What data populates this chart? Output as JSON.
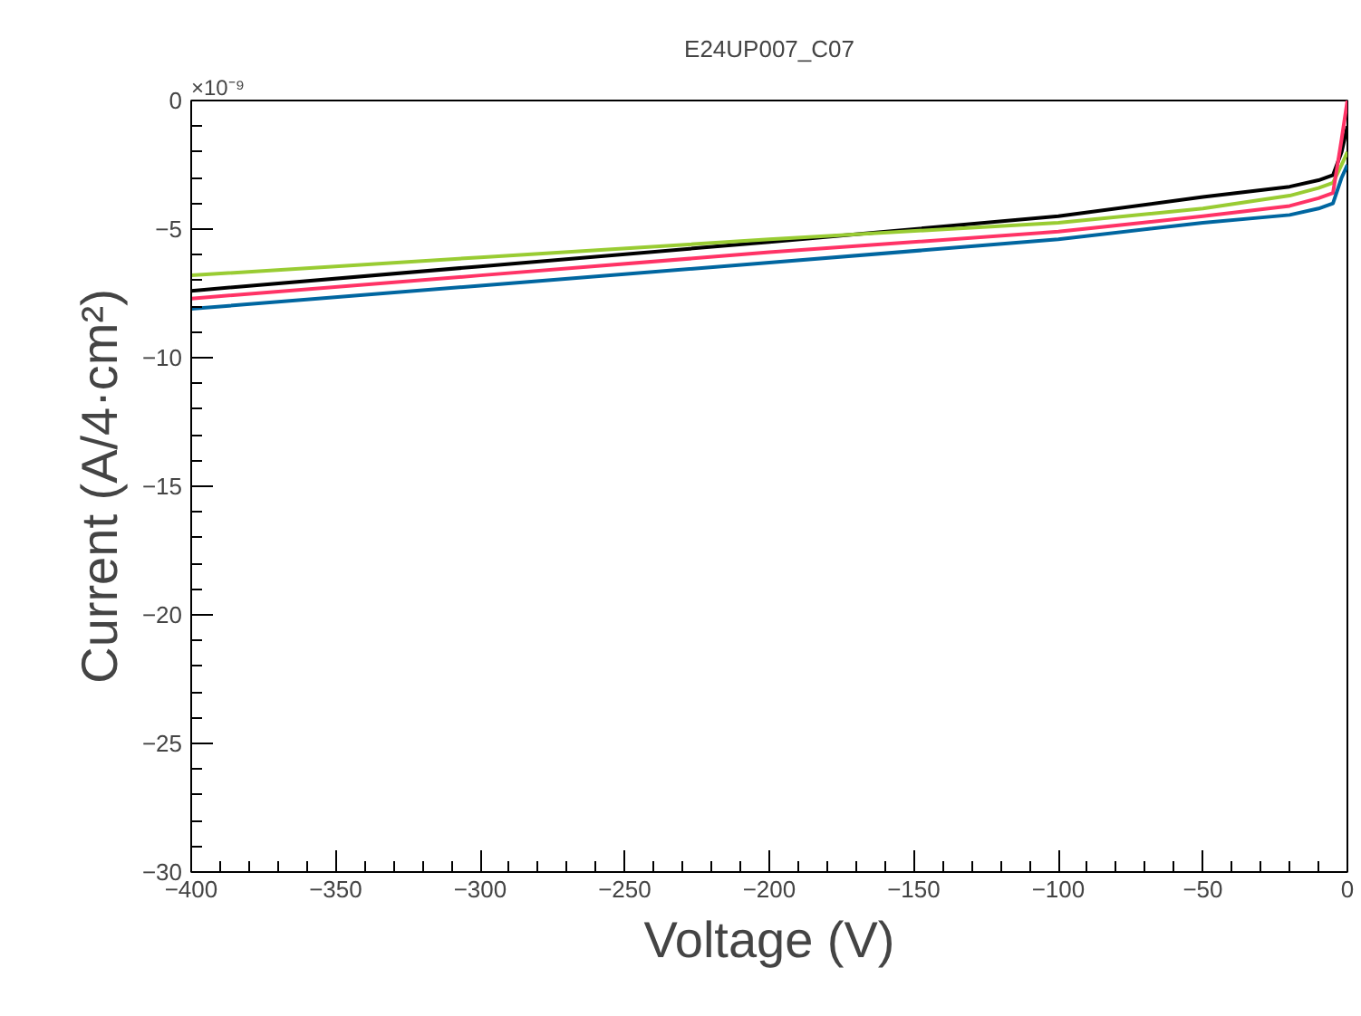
{
  "chart_data": {
    "type": "line",
    "title": "E24UP007_C07",
    "xlabel": "Voltage (V)",
    "ylabel": "Current (A/4·cm²)",
    "annotations": [
      "×10⁻⁹"
    ],
    "x": [
      -400,
      -300,
      -200,
      -100,
      -50,
      -20,
      -10,
      -5,
      -2,
      0
    ],
    "series": [
      {
        "color": "#000000",
        "values": [
          -7.4,
          -6.45,
          -5.5,
          -4.5,
          -3.75,
          -3.35,
          -3.1,
          -2.9,
          -2.0,
          -1.0
        ]
      },
      {
        "color": "#99cc33",
        "values": [
          -6.8,
          -6.1,
          -5.4,
          -4.75,
          -4.2,
          -3.7,
          -3.4,
          -3.2,
          -2.5,
          -2.0
        ]
      },
      {
        "color": "#ff3366",
        "values": [
          -7.7,
          -6.8,
          -5.9,
          -5.1,
          -4.5,
          -4.1,
          -3.8,
          -3.6,
          -1.5,
          0
        ]
      },
      {
        "color": "#0066a0",
        "values": [
          -8.1,
          -7.2,
          -6.3,
          -5.4,
          -4.75,
          -4.45,
          -4.2,
          -4.0,
          -3.0,
          -2.5
        ]
      }
    ],
    "xlim": [
      -400,
      0
    ],
    "ylim": [
      -30,
      0
    ],
    "xticks": [
      -400,
      -350,
      -300,
      -250,
      -200,
      -150,
      -100,
      -50,
      0
    ],
    "yticks": [
      -30,
      -25,
      -20,
      -15,
      -10,
      -5,
      0
    ],
    "marker": "none",
    "line_style": "solid"
  }
}
